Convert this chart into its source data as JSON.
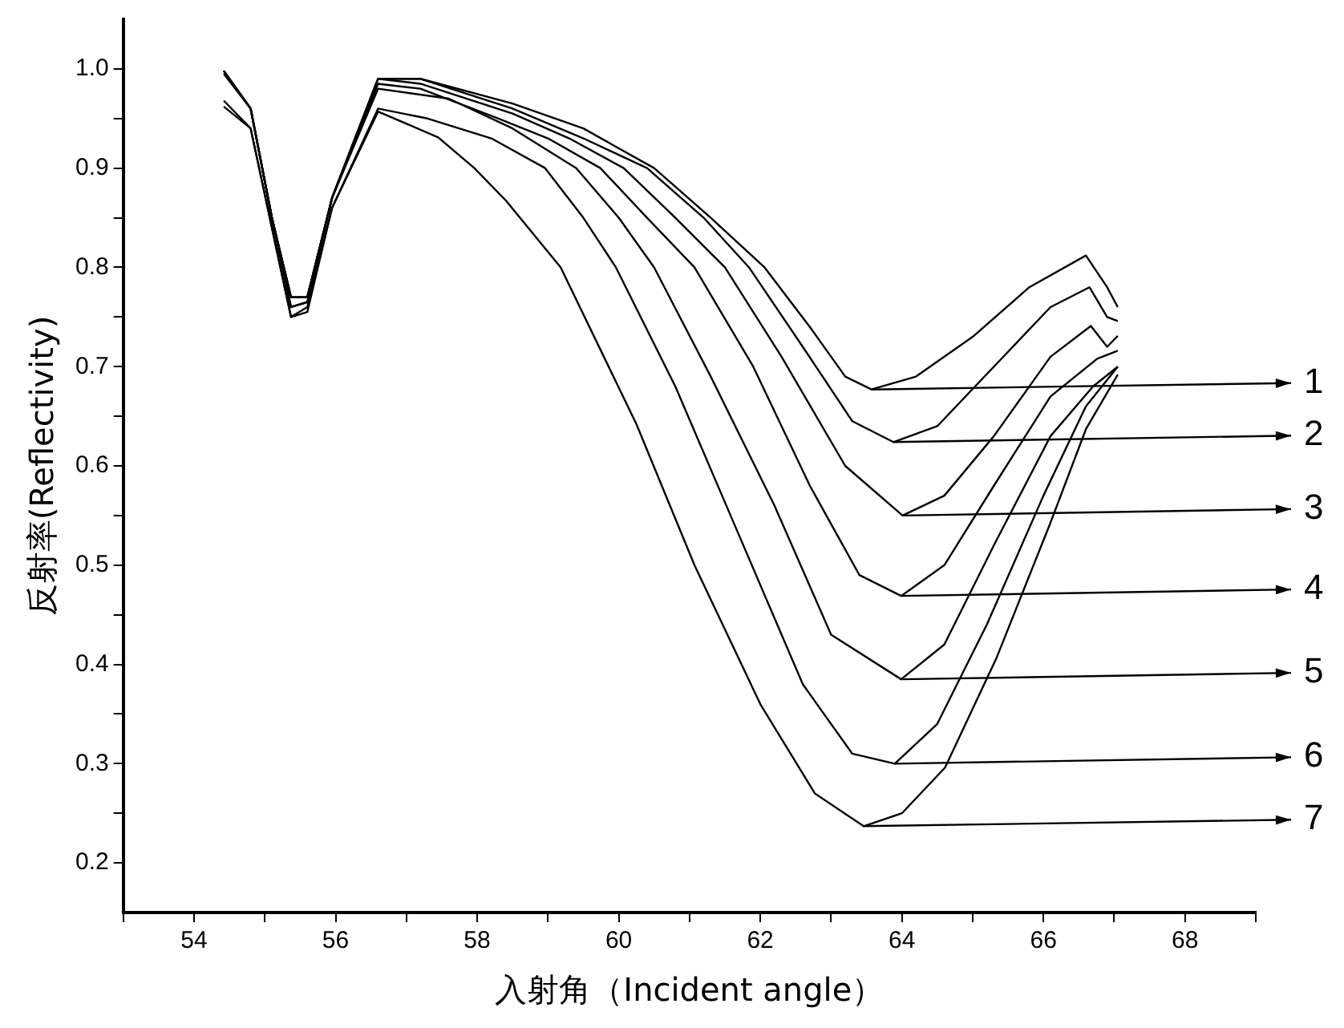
{
  "chart_data": {
    "type": "line",
    "xlabel": "入射角（Incident angle）",
    "ylabel": "反射率(Reflectivity)",
    "xlim": [
      53,
      69
    ],
    "ylim": [
      0.15,
      1.05
    ],
    "xticks": [
      {
        "value": 53,
        "label": null
      },
      54,
      {
        "value": 55,
        "label": null
      },
      56,
      {
        "value": 57,
        "label": null
      },
      58,
      {
        "value": 59,
        "label": null
      },
      60,
      {
        "value": 61,
        "label": null
      },
      62,
      {
        "value": 63,
        "label": null
      },
      64,
      {
        "value": 65,
        "label": null
      },
      66,
      {
        "value": 67,
        "label": null
      },
      68,
      {
        "value": 69,
        "label": null
      }
    ],
    "yticks": [
      {
        "value": 0.2,
        "label": "0.2"
      },
      {
        "value": 0.25,
        "label": null
      },
      {
        "value": 0.3,
        "label": "0.3"
      },
      {
        "value": 0.35,
        "label": null
      },
      {
        "value": 0.4,
        "label": "0.4"
      },
      {
        "value": 0.45,
        "label": null
      },
      {
        "value": 0.5,
        "label": "0.5"
      },
      {
        "value": 0.55,
        "label": null
      },
      {
        "value": 0.6,
        "label": "0.6"
      },
      {
        "value": 0.65,
        "label": null
      },
      {
        "value": 0.7,
        "label": "0.7"
      },
      {
        "value": 0.75,
        "label": null
      },
      {
        "value": 0.8,
        "label": "0.8"
      },
      {
        "value": 0.85,
        "label": null
      },
      {
        "value": 0.9,
        "label": "0.9"
      },
      {
        "value": 0.95,
        "label": null
      },
      {
        "value": 1.0,
        "label": "1.0"
      }
    ],
    "grid": false,
    "legend": "right",
    "marker": "none",
    "line_style": "solid",
    "series": [
      {
        "name": "1",
        "color": "#000000",
        "x": [
          54.42,
          54.8,
          55.1,
          55.37,
          55.6,
          55.95,
          56.6,
          57.2,
          58.5,
          59.5,
          60.5,
          61.3,
          62.06,
          62.7,
          63.2,
          63.57,
          64.2,
          65,
          65.8,
          66.6,
          66.9,
          67.05
        ],
        "values": [
          0.998,
          0.96,
          0.85,
          0.77,
          0.77,
          0.87,
          0.99,
          0.99,
          0.965,
          0.94,
          0.9,
          0.85,
          0.8,
          0.74,
          0.69,
          0.677,
          0.69,
          0.73,
          0.78,
          0.812,
          0.78,
          0.76
        ]
      },
      {
        "name": "2",
        "color": "#000000",
        "x": [
          54.42,
          54.8,
          55.1,
          55.37,
          55.6,
          55.95,
          56.6,
          57.2,
          58.5,
          59.5,
          60.4,
          61.2,
          61.84,
          62.6,
          63.3,
          63.88,
          64.5,
          65.3,
          66.1,
          66.65,
          66.9,
          67.05
        ],
        "values": [
          0.998,
          0.96,
          0.85,
          0.77,
          0.77,
          0.87,
          0.99,
          0.99,
          0.96,
          0.93,
          0.9,
          0.85,
          0.8,
          0.72,
          0.645,
          0.624,
          0.64,
          0.7,
          0.76,
          0.78,
          0.75,
          0.746
        ]
      },
      {
        "name": "3",
        "color": "#000000",
        "x": [
          54.42,
          54.8,
          55.1,
          55.37,
          55.6,
          55.95,
          56.6,
          57.2,
          58.5,
          59.3,
          60.07,
          60.8,
          61.5,
          62.3,
          63.2,
          64.01,
          64.6,
          65.3,
          66.1,
          66.67,
          66.9,
          67.05
        ],
        "values": [
          0.998,
          0.96,
          0.85,
          0.77,
          0.77,
          0.87,
          0.99,
          0.985,
          0.955,
          0.93,
          0.9,
          0.85,
          0.8,
          0.71,
          0.6,
          0.55,
          0.57,
          0.63,
          0.71,
          0.741,
          0.72,
          0.731
        ]
      },
      {
        "name": "4",
        "color": "#000000",
        "x": [
          54.42,
          54.8,
          55.1,
          55.37,
          55.6,
          55.95,
          56.6,
          57.2,
          58.3,
          59.0,
          59.74,
          60.4,
          61.07,
          61.9,
          62.7,
          63.4,
          63.99,
          64.6,
          65.3,
          66.1,
          66.76,
          67.05
        ],
        "values": [
          0.998,
          0.96,
          0.85,
          0.76,
          0.765,
          0.87,
          0.985,
          0.98,
          0.95,
          0.93,
          0.9,
          0.85,
          0.8,
          0.7,
          0.58,
          0.49,
          0.469,
          0.5,
          0.58,
          0.67,
          0.708,
          0.716
        ]
      },
      {
        "name": "5",
        "color": "#000000",
        "x": [
          54.42,
          54.8,
          55.1,
          55.37,
          55.6,
          55.95,
          56.6,
          57.6,
          58.5,
          59.4,
          60.0,
          60.5,
          61.3,
          62.2,
          63.0,
          63.99,
          64.6,
          65.3,
          66.1,
          66.7,
          67.05
        ],
        "values": [
          0.995,
          0.96,
          0.85,
          0.76,
          0.765,
          0.87,
          0.98,
          0.97,
          0.94,
          0.9,
          0.85,
          0.8,
          0.69,
          0.56,
          0.43,
          0.385,
          0.42,
          0.52,
          0.63,
          0.68,
          0.7
        ]
      },
      {
        "name": "6",
        "color": "#000000",
        "x": [
          54.42,
          54.8,
          55.1,
          55.37,
          55.6,
          55.95,
          56.6,
          57.3,
          58.2,
          58.96,
          59.5,
          59.96,
          60.8,
          61.7,
          62.6,
          63.3,
          63.9,
          64.5,
          65.2,
          66.0,
          66.6,
          67.05
        ],
        "values": [
          0.968,
          0.94,
          0.84,
          0.75,
          0.76,
          0.86,
          0.96,
          0.95,
          0.93,
          0.9,
          0.85,
          0.8,
          0.68,
          0.53,
          0.38,
          0.31,
          0.3,
          0.34,
          0.44,
          0.57,
          0.66,
          0.7
        ]
      },
      {
        "name": "7",
        "color": "#000000",
        "x": [
          54.42,
          54.8,
          55.1,
          55.37,
          55.6,
          55.95,
          56.6,
          57.45,
          57.96,
          58.41,
          59.18,
          60.25,
          61.07,
          62.0,
          62.77,
          63.46,
          64.0,
          64.61,
          65.34,
          66.09,
          66.6,
          67.05
        ],
        "values": [
          0.962,
          0.94,
          0.84,
          0.75,
          0.755,
          0.86,
          0.957,
          0.931,
          0.9,
          0.867,
          0.8,
          0.642,
          0.5,
          0.36,
          0.27,
          0.237,
          0.25,
          0.296,
          0.407,
          0.541,
          0.637,
          0.692
        ]
      }
    ]
  }
}
